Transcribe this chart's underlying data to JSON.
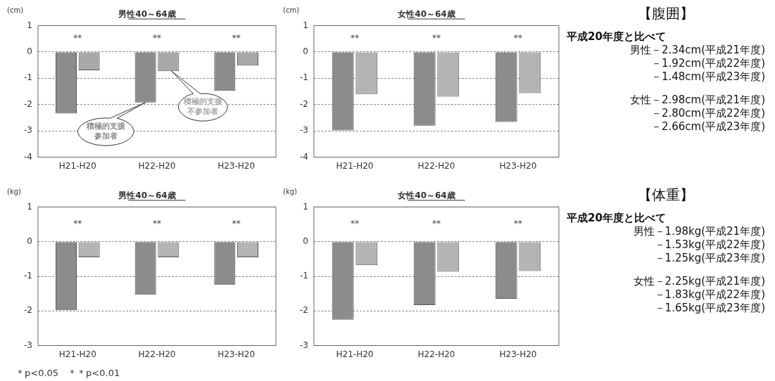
{
  "chart_data": [
    {
      "type": "bar",
      "title": "男性40～64歳",
      "ylabel": "(cm)",
      "categories": [
        "H21-H20",
        "H22-H20",
        "H23-H20"
      ],
      "series": [
        {
          "name": "積極的支援参加者",
          "color": "#8c8c8c",
          "values": [
            -2.34,
            -1.92,
            -1.48
          ]
        },
        {
          "name": "積極的支援不参加者",
          "color": "#a8a8a8",
          "values": [
            -0.7,
            -0.73,
            -0.52
          ]
        }
      ],
      "ylim": [
        -4,
        1
      ],
      "yticks": [
        -4,
        -3,
        -2,
        -1,
        0,
        1
      ],
      "grid": "y",
      "legend": false,
      "annotations": [
        "**",
        "**",
        "**"
      ]
    },
    {
      "type": "bar",
      "title": "女性40～64歳",
      "ylabel": "(cm)",
      "categories": [
        "H21-H20",
        "H22-H20",
        "H23-H20"
      ],
      "series": [
        {
          "color": "#8c8c8c",
          "values": [
            -2.98,
            -2.8,
            -2.66
          ]
        },
        {
          "color": "#b4b4b4",
          "values": [
            -1.6,
            -1.7,
            -1.57
          ]
        }
      ],
      "ylim": [
        -4,
        1
      ],
      "yticks": [
        -4,
        -3,
        -2,
        -1,
        0,
        1
      ],
      "grid": "y",
      "legend": false,
      "annotations": [
        "**",
        "**",
        "**"
      ]
    },
    {
      "type": "other",
      "title": "【腹囲】",
      "annotations": [
        "平成20年度と比べて",
        "男性－2.34cm(平成21年度)",
        "－1.92cm(平成22年度)",
        "－1.48cm(平成23年度)",
        "女性－2.98cm(平成21年度)",
        "－2.80cm(平成22年度)",
        "－2.66cm(平成23年度)"
      ]
    },
    {
      "type": "bar",
      "title": "男性40～64歳",
      "ylabel": "(kg)",
      "categories": [
        "H21-H20",
        "H22-H20",
        "H23-H20"
      ],
      "series": [
        {
          "color": "#8c8c8c",
          "values": [
            -1.98,
            -1.53,
            -1.25
          ]
        },
        {
          "color": "#b4b4b4",
          "values": [
            -0.45,
            -0.45,
            -0.45
          ]
        }
      ],
      "ylim": [
        -3,
        1
      ],
      "yticks": [
        -3,
        -2,
        -1,
        0,
        1
      ],
      "grid": "y",
      "legend": false,
      "annotations": [
        "**",
        "**",
        "**",
        "＊p<0.05　＊＊p<0.01"
      ]
    },
    {
      "type": "bar",
      "title": "女性40～64歳",
      "ylabel": "(kg)",
      "categories": [
        "H21-H20",
        "H22-H20",
        "H23-H20"
      ],
      "series": [
        {
          "color": "#8c8c8c",
          "values": [
            -2.25,
            -1.83,
            -1.65
          ]
        },
        {
          "color": "#b4b4b4",
          "values": [
            -0.68,
            -0.87,
            -0.85
          ]
        }
      ],
      "ylim": [
        -3,
        1
      ],
      "yticks": [
        -3,
        -2,
        -1,
        0,
        1
      ],
      "grid": "y",
      "legend": false,
      "annotations": [
        "**",
        "**",
        "**"
      ]
    },
    {
      "type": "other",
      "title": "【体重】",
      "annotations": [
        "平成20年度と比べて",
        "男性－1.98kg(平成21年度)",
        "－1.53kg(平成22年度)",
        "－1.25kg(平成23年度)",
        "女性－2.25kg(平成21年度)",
        "－1.83kg(平成22年度)",
        "－1.65kg(平成23年度)"
      ]
    }
  ]
}
